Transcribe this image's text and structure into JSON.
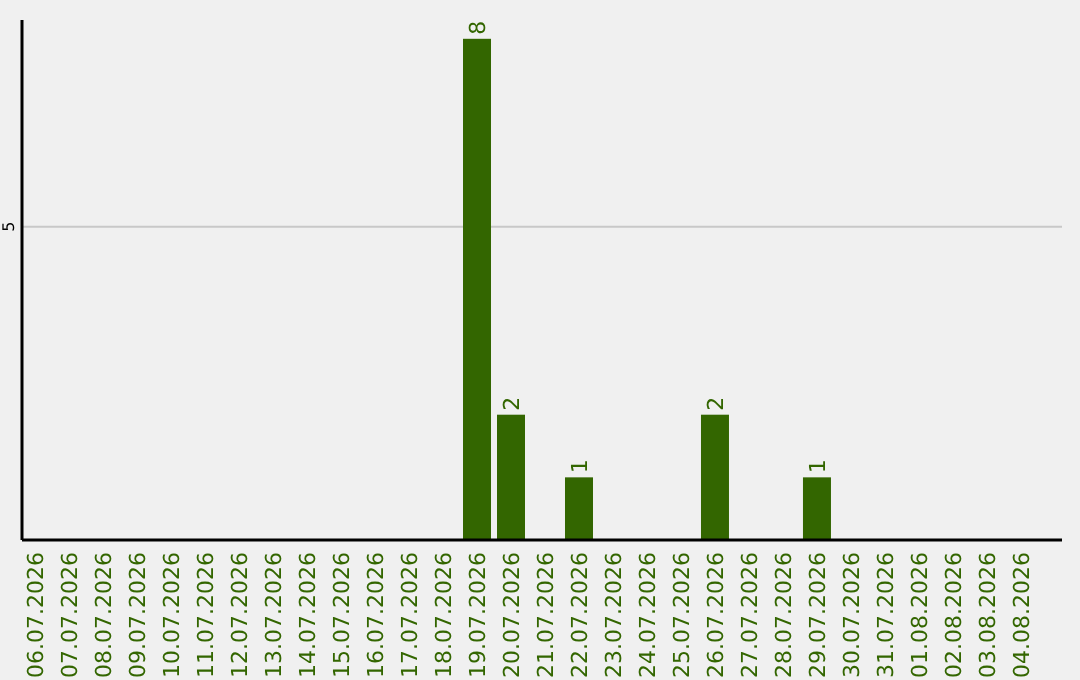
{
  "chart_data": {
    "type": "bar",
    "categories": [
      "06.07.2026",
      "07.07.2026",
      "08.07.2026",
      "09.07.2026",
      "10.07.2026",
      "11.07.2026",
      "12.07.2026",
      "13.07.2026",
      "14.07.2026",
      "15.07.2026",
      "16.07.2026",
      "17.07.2026",
      "18.07.2026",
      "19.07.2026",
      "20.07.2026",
      "21.07.2026",
      "22.07.2026",
      "23.07.2026",
      "24.07.2026",
      "25.07.2026",
      "26.07.2026",
      "27.07.2026",
      "28.07.2026",
      "29.07.2026",
      "30.07.2026",
      "31.07.2026",
      "01.08.2026",
      "02.08.2026",
      "03.08.2026",
      "04.08.2026"
    ],
    "values": [
      null,
      null,
      null,
      null,
      null,
      null,
      null,
      null,
      null,
      null,
      null,
      null,
      null,
      8,
      2,
      null,
      1,
      null,
      null,
      null,
      2,
      null,
      null,
      1,
      null,
      null,
      null,
      null,
      null,
      null
    ],
    "color": "#336600",
    "ylim": [
      0,
      8.3
    ],
    "yticks": [
      5
    ],
    "grid": "y",
    "data_labels": true
  }
}
